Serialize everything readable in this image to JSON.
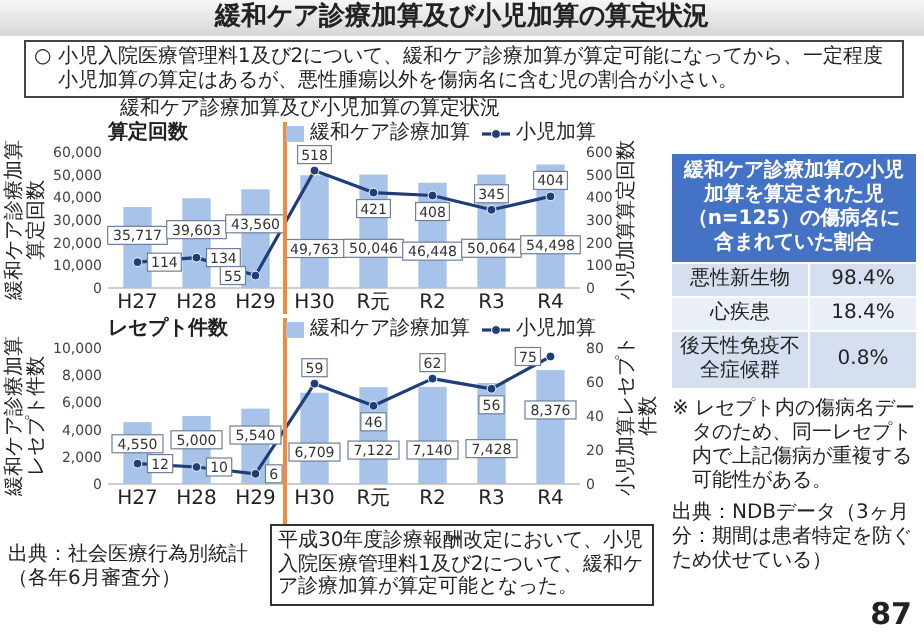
{
  "chart_data": [
    {
      "type": "other",
      "title": "緩和ケア診療加算及び小児加算の算定状況",
      "annotations": [
        "○ 小児入院医療管理料1及び2について、緩和ケア診療加算が算定可能になってから、一定程度小児加算の算定はあるが、悪性腫瘍以外を傷病名に含む児の割合が小さい。"
      ]
    },
    {
      "type": "bar",
      "title": "緩和ケア診療加算及び小児加算の算定状況",
      "subtitle": "算定回数",
      "ylabel": "緩和ケア診療加算算定回数",
      "y2label": "小児加算算定回数",
      "categories": [
        "H27",
        "H28",
        "H29",
        "H30",
        "R元",
        "R2",
        "R3",
        "R4"
      ],
      "series": [
        {
          "name": "緩和ケア診療加算",
          "type": "bar",
          "color": "#a7c3ea",
          "values": [
            35717,
            39603,
            43560,
            49763,
            50046,
            46448,
            50064,
            54498
          ],
          "value_labels": [
            "35,717",
            "39,603",
            "43,560",
            "49,763",
            "50,046",
            "46,448",
            "50,064",
            "54,498"
          ]
        },
        {
          "name": "小児加算",
          "type": "line",
          "axis": "y2",
          "color": "#1f3d7a",
          "values": [
            114,
            134,
            55,
            518,
            421,
            408,
            345,
            404
          ]
        }
      ],
      "ylim": [
        0,
        60000
      ],
      "yticks": [
        0,
        {
          "value": 10000,
          "label": "10,000"
        },
        {
          "value": 20000,
          "label": "20,000"
        },
        {
          "value": 30000,
          "label": "30,000"
        },
        {
          "value": 40000,
          "label": "40,000"
        },
        {
          "value": 50000,
          "label": "50,000"
        },
        {
          "value": 60000,
          "label": "60,000"
        }
      ],
      "y2lim": [
        0,
        600
      ],
      "y2ticks": [
        0,
        100,
        200,
        300,
        400,
        500,
        600
      ],
      "ref_lines": [
        {
          "axis": "x",
          "value": "H30",
          "color": "#f08a3c"
        }
      ],
      "data_labels": true,
      "legend": "top",
      "marker": "circle",
      "grid": false
    },
    {
      "type": "bar",
      "subtitle": "レセプト件数",
      "ylabel": "緩和ケア診療加算レセプト件数",
      "y2label": "小児加算レセプト件数",
      "categories": [
        "H27",
        "H28",
        "H29",
        "H30",
        "R元",
        "R2",
        "R3",
        "R4"
      ],
      "series": [
        {
          "name": "緩和ケア診療加算",
          "type": "bar",
          "color": "#a7c3ea",
          "values": [
            4550,
            5000,
            5540,
            6709,
            7122,
            7140,
            7428,
            8376
          ],
          "value_labels": [
            "4,550",
            "5,000",
            "5,540",
            "6,709",
            "7,122",
            "7,140",
            "7,428",
            "8,376"
          ]
        },
        {
          "name": "小児加算",
          "type": "line",
          "axis": "y2",
          "color": "#1f3d7a",
          "values": [
            12,
            10,
            6,
            59,
            46,
            62,
            56,
            75
          ]
        }
      ],
      "ylim": [
        0,
        10000
      ],
      "yticks": [
        0,
        {
          "value": 2000,
          "label": "2,000"
        },
        {
          "value": 4000,
          "label": "4,000"
        },
        {
          "value": 6000,
          "label": "6,000"
        },
        {
          "value": 8000,
          "label": "8,000"
        },
        {
          "value": 10000,
          "label": "10,000"
        }
      ],
      "y2lim": [
        0,
        80
      ],
      "y2ticks": [
        0,
        20,
        40,
        60,
        80
      ],
      "ref_lines": [
        {
          "axis": "x",
          "value": "H30",
          "color": "#f08a3c"
        }
      ],
      "data_labels": true,
      "legend": "top",
      "marker": "circle",
      "grid": false,
      "annotations": [
        "平成30年度診療報酬改定において、小児入院医療管理料1及び2について、緩和ケア診療加算が算定可能となった。",
        "出典：社会医療行為別統計（各年6月審査分）"
      ]
    },
    {
      "type": "other",
      "title": "緩和ケア診療加算の小児加算を算定された児（n=125）の傷病名に含まれていた割合",
      "categories": [
        "悪性新生物",
        "心疾患",
        "後天性免疫不全症候群"
      ],
      "value_labels": [
        "98.4%",
        "18.4%",
        "0.8%"
      ],
      "annotations": [
        "※ レセプト内の傷病名データのため、同一レセプト内で上記傷病が重複する可能性がある。",
        "出典：NDBデータ（3ヶ月分：期間は患者特定を防ぐため伏せている）",
        "87"
      ]
    }
  ]
}
